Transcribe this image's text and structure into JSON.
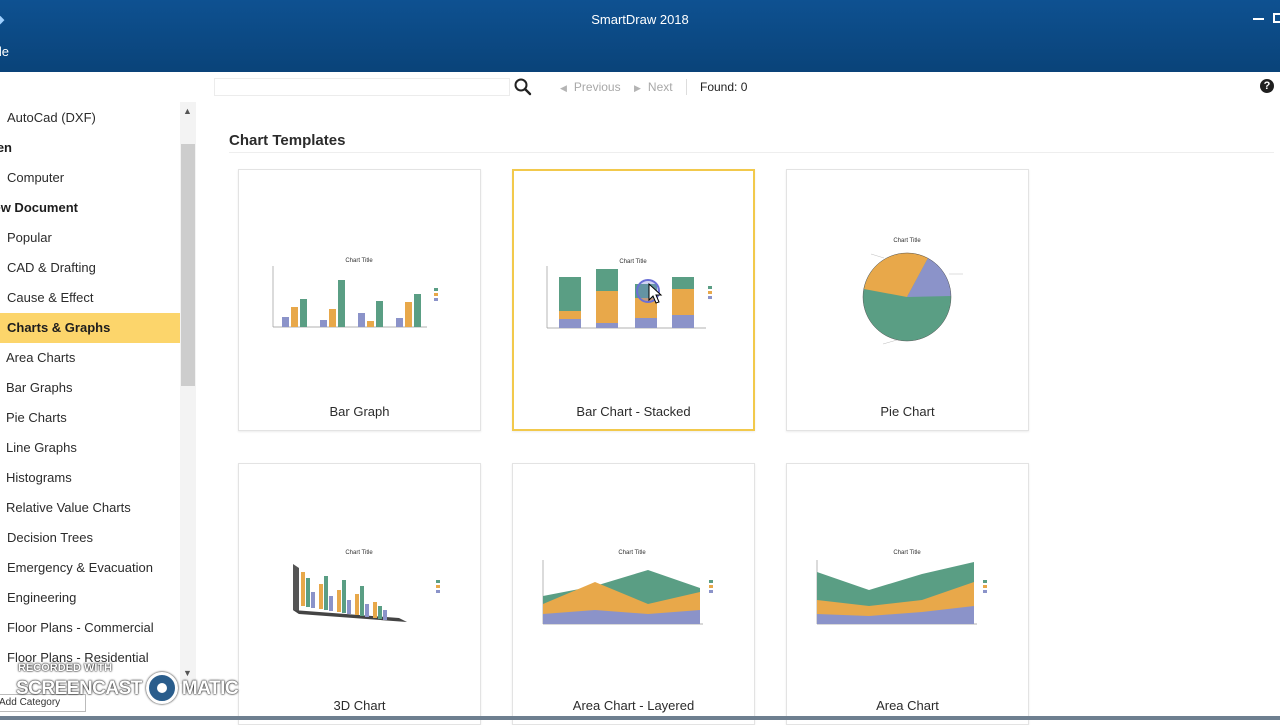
{
  "window": {
    "title": "SmartDraw 2018",
    "menu_file": "File"
  },
  "search": {
    "placeholder": "",
    "previous_label": "Previous",
    "next_label": "Next",
    "found_text": "Found: 0"
  },
  "sidebar": {
    "items": [
      {
        "label": "AutoCad (DXF)",
        "type": "item"
      },
      {
        "label": "Open",
        "type": "header"
      },
      {
        "label": "Computer",
        "type": "item"
      },
      {
        "label": "New Document",
        "type": "header"
      },
      {
        "label": "Popular",
        "type": "item"
      },
      {
        "label": "CAD & Drafting",
        "type": "item"
      },
      {
        "label": "Cause & Effect",
        "type": "item"
      },
      {
        "label": "Charts & Graphs",
        "type": "selected"
      },
      {
        "label": "Area Charts",
        "type": "sub"
      },
      {
        "label": "Bar Graphs",
        "type": "sub"
      },
      {
        "label": "Pie Charts",
        "type": "sub"
      },
      {
        "label": "Line Graphs",
        "type": "sub"
      },
      {
        "label": "Histograms",
        "type": "sub"
      },
      {
        "label": "Relative Value Charts",
        "type": "sub"
      },
      {
        "label": "Decision Trees",
        "type": "item"
      },
      {
        "label": "Emergency & Evacuation",
        "type": "item"
      },
      {
        "label": "Engineering",
        "type": "item"
      },
      {
        "label": "Floor Plans - Commercial",
        "type": "item"
      },
      {
        "label": "Floor Plans - Residential",
        "type": "item"
      }
    ],
    "add_category_label": "Add Category"
  },
  "main": {
    "section_title": "Chart Templates",
    "templates": [
      {
        "label": "Bar Graph",
        "selected": false
      },
      {
        "label": "Bar Chart - Stacked",
        "selected": true
      },
      {
        "label": "Pie Chart",
        "selected": false
      },
      {
        "label": "3D Chart",
        "selected": false
      },
      {
        "label": "Area Chart - Layered",
        "selected": false
      },
      {
        "label": "Area Chart",
        "selected": false
      }
    ],
    "thumbnail_title": "Chart Title"
  },
  "watermark": {
    "line1": "RECORDED WITH",
    "brand_left": "SCREENCAST",
    "brand_right": "MATIC"
  },
  "colors": {
    "titlebar": "#0b4a86",
    "selected_item": "#fcd56b",
    "selected_card_border": "#f2c94c",
    "series_green": "#5a9e84",
    "series_orange": "#e8a84a",
    "series_purple": "#8b93c9"
  }
}
